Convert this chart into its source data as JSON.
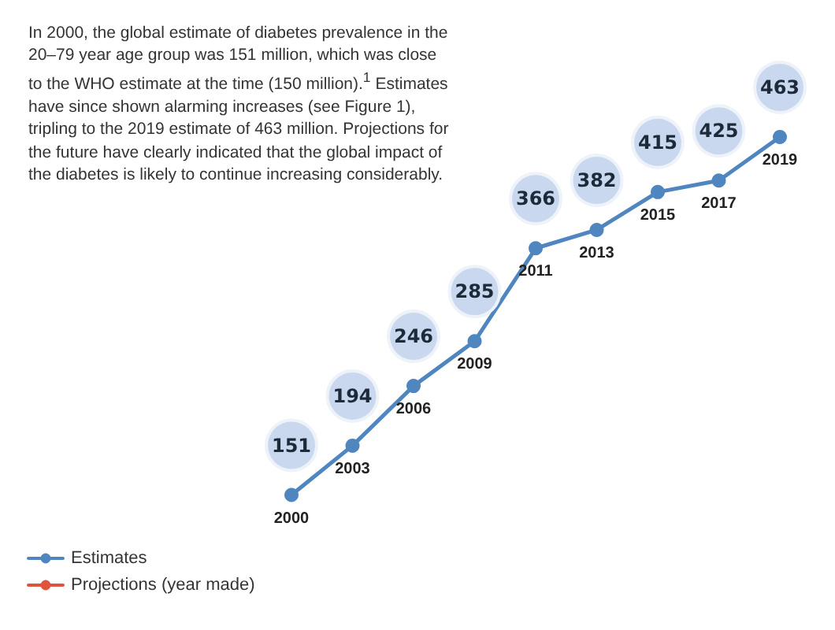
{
  "chart_data": {
    "type": "line",
    "annotations": [
      "In 2000, the global estimate of diabetes prevalence in the 20–79 year age group was 151 million, which was close to the WHO estimate at the time (150 million).$^{1}$ Estimates have since shown alarming increases (see Figure 1), tripling to the 2019 estimate of 463 million. Projections for the future have clearly indicated that the global impact of the diabetes is likely to continue increasing considerably."
    ],
    "categories": [
      "2000",
      "2003",
      "2006",
      "2009",
      "2011",
      "2013",
      "2015",
      "2017",
      "2019"
    ],
    "series": [
      {
        "name": "Estimates",
        "color": "#4f86c0",
        "values": [
          151,
          194,
          246,
          285,
          366,
          382,
          415,
          425,
          463
        ]
      },
      {
        "name": "Projections (year made)",
        "color": "#e0533f",
        "values": [
          null,
          null,
          null,
          null,
          null,
          null,
          null,
          null,
          null
        ]
      }
    ],
    "data_labels": true,
    "marker": "circle",
    "line_style": "solid",
    "legend": "bottom left",
    "grid": false
  }
}
